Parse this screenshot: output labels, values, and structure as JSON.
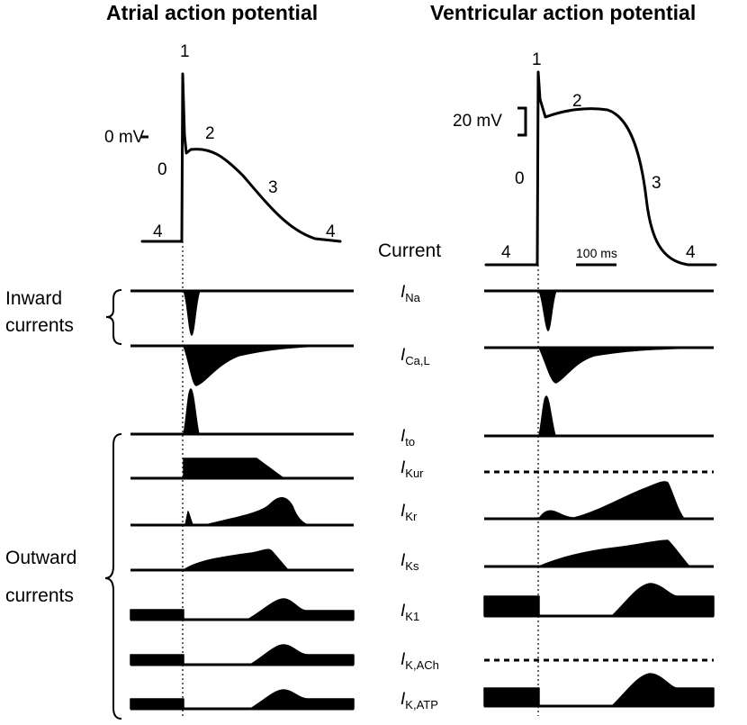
{
  "titles": {
    "atrial": "Atrial action potential",
    "ventricular": "Ventricular action potential"
  },
  "phases": [
    "0",
    "1",
    "2",
    "3",
    "4"
  ],
  "scale": {
    "zero_mv": "0 mV",
    "twenty_mv": "20 mV",
    "time": "100 ms"
  },
  "current_header": "Current",
  "groups": {
    "inward": [
      "Inward",
      "currents"
    ],
    "outward": [
      "Outward",
      "currents"
    ]
  },
  "currents": [
    {
      "main": "I",
      "sub": "Na"
    },
    {
      "main": "I",
      "sub": "Ca,L"
    },
    {
      "main": "I",
      "sub": "to"
    },
    {
      "main": "I",
      "sub": "Kur"
    },
    {
      "main": "I",
      "sub": "Kr"
    },
    {
      "main": "I",
      "sub": "Ks"
    },
    {
      "main": "I",
      "sub": "K1"
    },
    {
      "main": "I",
      "sub": "K,ACh"
    },
    {
      "main": "I",
      "sub": "K,ATP"
    }
  ]
}
